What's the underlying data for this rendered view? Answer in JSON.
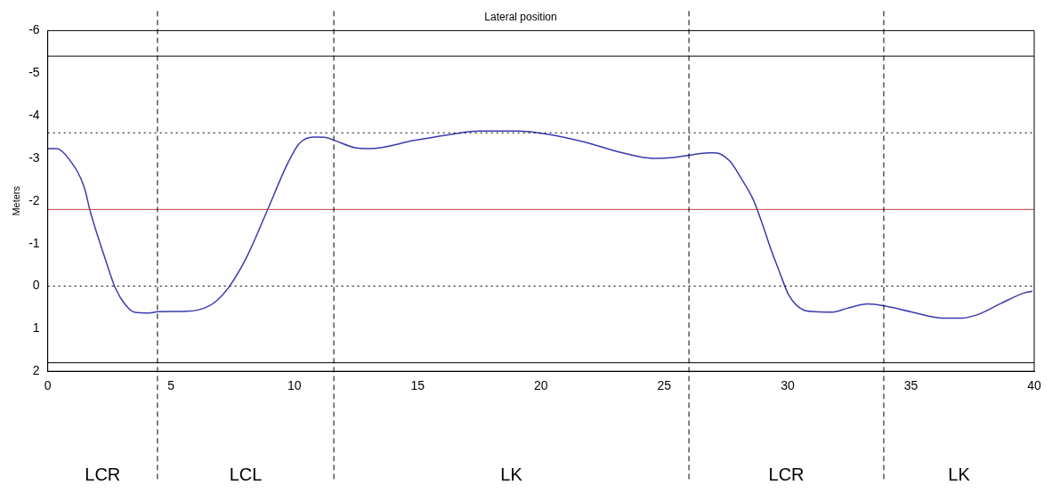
{
  "chart_data": {
    "type": "line",
    "title": "Lateral position",
    "ylabel": "Meters",
    "xlim": [
      0,
      40
    ],
    "xticks": [
      0,
      5,
      10,
      15,
      20,
      25,
      30,
      35,
      40
    ],
    "ylim": [
      2,
      -6
    ],
    "yticks": [
      -6,
      -5,
      -4,
      -3,
      -2,
      -1,
      0,
      1,
      2
    ],
    "grid": false,
    "legend": false,
    "marker": "none",
    "line_style": "solid",
    "series": [
      {
        "color": "#3a3ab0",
        "x": [
          0,
          0.36,
          0.88,
          1.48,
          1.72,
          2.32,
          2.73,
          3.15,
          3.51,
          4.11,
          4.47,
          5.66,
          6.38,
          6.86,
          7.34,
          8.05,
          8.89,
          9.72,
          10.2,
          10.8,
          11.28,
          11.64,
          12.47,
          13.07,
          14.86,
          16.42,
          17.49,
          19.04,
          20.24,
          21.79,
          23.23,
          24.54,
          25.38,
          25.97,
          26.81,
          27.05,
          27.65,
          28.13,
          28.6,
          28.96,
          29.32,
          29.68,
          30.04,
          30.64,
          31.11,
          31.83,
          32.42,
          33.26,
          33.98,
          35.05,
          36.25,
          37.08,
          37.8,
          38.64,
          39.6,
          39.93
        ],
        "values": [
          -3.23,
          -3.23,
          -2.97,
          -2.32,
          -1.76,
          -0.66,
          0.03,
          0.44,
          0.61,
          0.63,
          0.6,
          0.59,
          0.51,
          0.34,
          0.03,
          -0.66,
          -1.76,
          -2.87,
          -3.35,
          -3.5,
          -3.49,
          -3.42,
          -3.25,
          -3.23,
          -3.42,
          -3.57,
          -3.64,
          -3.64,
          -3.57,
          -3.38,
          -3.14,
          -3.0,
          -3.02,
          -3.07,
          -3.13,
          -3.13,
          -2.94,
          -2.52,
          -2.04,
          -1.49,
          -0.87,
          -0.32,
          0.2,
          0.56,
          0.6,
          0.61,
          0.52,
          0.42,
          0.47,
          0.61,
          0.75,
          0.75,
          0.65,
          0.41,
          0.16,
          0.12
        ]
      }
    ],
    "ref_lines": [
      {
        "axis": "y",
        "value": -5.4,
        "color": "#000000",
        "line_style": "solid"
      },
      {
        "axis": "y",
        "value": 1.8,
        "color": "#000000",
        "line_style": "solid"
      },
      {
        "axis": "y",
        "value": -3.6,
        "color": "#000000",
        "line_style": "dotted"
      },
      {
        "axis": "y",
        "value": 0,
        "color": "#000000",
        "line_style": "dotted"
      },
      {
        "axis": "y",
        "value": -1.8,
        "color": "#c04040",
        "line_style": "solid"
      },
      {
        "axis": "x",
        "value": 4.45,
        "color": "#000000",
        "line_style": "dashed"
      },
      {
        "axis": "x",
        "value": 11.6,
        "color": "#000000",
        "line_style": "dashed"
      },
      {
        "axis": "x",
        "value": 26,
        "color": "#000000",
        "line_style": "dashed"
      },
      {
        "axis": "x",
        "value": 33.9,
        "color": "#000000",
        "line_style": "dashed"
      }
    ],
    "annotations": [
      "LCR",
      "LCL",
      "LK",
      "LCR",
      "LK"
    ]
  }
}
